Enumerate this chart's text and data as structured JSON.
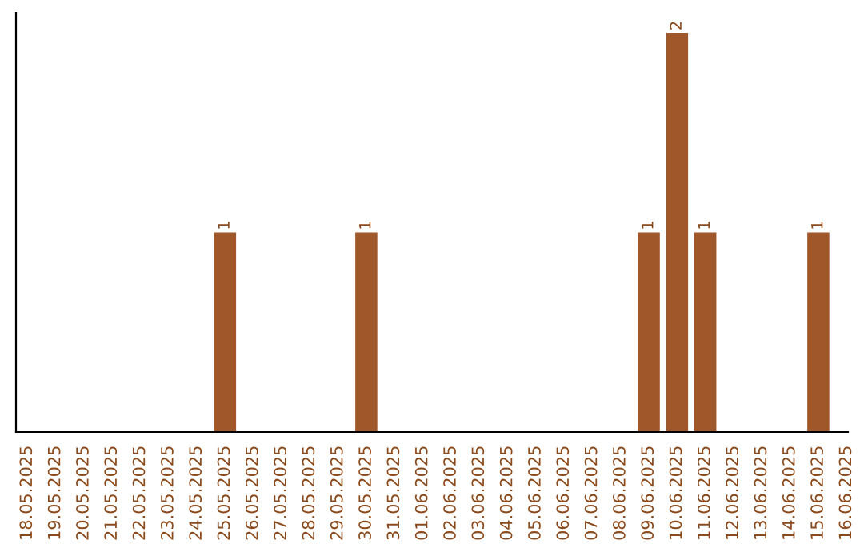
{
  "chart_data": {
    "type": "bar",
    "categories": [
      "18.05.2025",
      "19.05.2025",
      "20.05.2025",
      "21.05.2025",
      "22.05.2025",
      "23.05.2025",
      "24.05.2025",
      "25.05.2025",
      "26.05.2025",
      "27.05.2025",
      "28.05.2025",
      "29.05.2025",
      "30.05.2025",
      "31.05.2025",
      "01.06.2025",
      "02.06.2025",
      "03.06.2025",
      "04.06.2025",
      "05.06.2025",
      "06.06.2025",
      "07.06.2025",
      "08.06.2025",
      "09.06.2025",
      "10.06.2025",
      "11.06.2025",
      "12.06.2025",
      "13.06.2025",
      "14.06.2025",
      "15.06.2025",
      "16.06.2025"
    ],
    "values": [
      0,
      0,
      0,
      0,
      0,
      0,
      0,
      1,
      0,
      0,
      0,
      0,
      1,
      0,
      0,
      0,
      0,
      0,
      0,
      0,
      0,
      0,
      1,
      2,
      1,
      0,
      0,
      0,
      1,
      0
    ],
    "value_labels": [
      null,
      null,
      null,
      null,
      null,
      null,
      null,
      "1",
      null,
      null,
      null,
      null,
      "1",
      null,
      null,
      null,
      null,
      null,
      null,
      null,
      null,
      null,
      "1",
      "2",
      "1",
      null,
      null,
      null,
      "1",
      null
    ],
    "color": "#a0572a",
    "grid": false,
    "legend": false
  }
}
